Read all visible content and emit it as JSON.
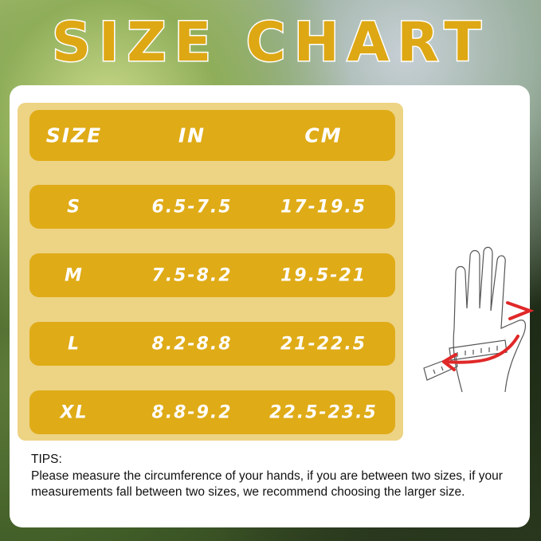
{
  "title": "SIZE CHART",
  "table": {
    "headers": [
      "SIZE",
      "IN",
      "CM"
    ],
    "rows": [
      {
        "size": "S",
        "in": "6.5-7.5",
        "cm": "17-19.5"
      },
      {
        "size": "M",
        "in": "7.5-8.2",
        "cm": "19.5-21"
      },
      {
        "size": "L",
        "in": "8.2-8.8",
        "cm": "21-22.5"
      },
      {
        "size": "XL",
        "in": "8.8-9.2",
        "cm": "22.5-23.5"
      }
    ]
  },
  "tips": {
    "label": "TIPS:",
    "text": "Please measure the circumference of your hands, if you are between two sizes,  if your measurements fall between two sizes, we recommend choosing the larger size."
  },
  "colors": {
    "accent": "#dfab17",
    "panel": "#edd384",
    "arrow": "#e02828"
  },
  "illustration": "hand-measuring-tape-icon"
}
